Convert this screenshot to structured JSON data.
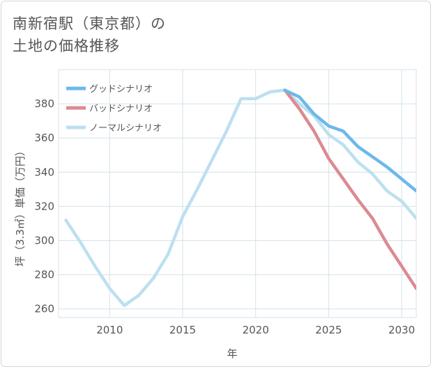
{
  "title_lines": [
    "南新宿駅（東京都）の",
    "土地の価格推移"
  ],
  "chart_data": {
    "type": "line",
    "title": "南新宿駅（東京都）の土地の価格推移",
    "xlabel": "年",
    "ylabel": "坪（3.3㎡）単価（万円）",
    "xlim": [
      2006.5,
      2031
    ],
    "ylim": [
      255,
      400
    ],
    "xticks": [
      2010,
      2015,
      2020,
      2025,
      2030
    ],
    "yticks": [
      260,
      280,
      300,
      320,
      340,
      360,
      380
    ],
    "grid": true,
    "legend_position": "top-left",
    "series": [
      {
        "name": "グッドシナリオ",
        "color": "#6cb8ec",
        "x": [
          2022,
          2023,
          2024,
          2025,
          2026,
          2027,
          2028,
          2029,
          2030,
          2031
        ],
        "values": [
          388,
          384,
          374,
          367,
          364,
          355,
          349,
          343,
          336,
          329
        ]
      },
      {
        "name": "バッドシナリオ",
        "color": "#dc8a92",
        "x": [
          2022,
          2023,
          2024,
          2025,
          2026,
          2027,
          2028,
          2029,
          2030,
          2031
        ],
        "values": [
          388,
          377,
          364,
          348,
          336,
          324,
          313,
          298,
          285,
          272
        ]
      },
      {
        "name": "ノーマルシナリオ",
        "color": "#bde0ef",
        "x": [
          2007,
          2008,
          2009,
          2010,
          2011,
          2012,
          2013,
          2014,
          2015,
          2016,
          2017,
          2018,
          2019,
          2020,
          2021,
          2022,
          2023,
          2024,
          2025,
          2026,
          2027,
          2028,
          2029,
          2030,
          2031
        ],
        "values": [
          312,
          299,
          285,
          272,
          262,
          268,
          278,
          292,
          314,
          330,
          347,
          364,
          383,
          383,
          387,
          388,
          380,
          373,
          362,
          356,
          346,
          339,
          329,
          323,
          313
        ]
      }
    ]
  }
}
